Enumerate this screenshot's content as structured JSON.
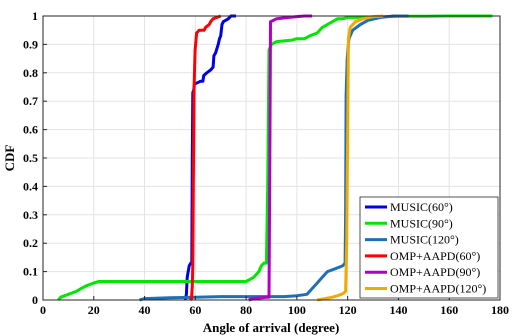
{
  "chart_data": {
    "type": "line",
    "xlabel": "Angle of arrival (degree)",
    "ylabel": "CDF",
    "xlim": [
      0,
      180
    ],
    "ylim": [
      0,
      1
    ],
    "x_ticks": [
      0,
      20,
      40,
      60,
      80,
      100,
      120,
      140,
      160,
      180
    ],
    "x_tick_labels": [
      "0",
      "20",
      "40",
      "60",
      "80",
      "100",
      "120",
      "140",
      "160",
      "180"
    ],
    "y_ticks": [
      0,
      0.1,
      0.2,
      0.3,
      0.4,
      0.5,
      0.6,
      0.7,
      0.8,
      0.9,
      1
    ],
    "y_tick_labels": [
      "0",
      "0.1",
      "0.2",
      "0.3",
      "0.4",
      "0.5",
      "0.6",
      "0.7",
      "0.8",
      "0.9",
      "1"
    ],
    "grid": true,
    "legend_position": "bottom-right",
    "series": [
      {
        "name": "MUSIC(60°)",
        "color": "#0000e6",
        "points": [
          [
            56,
            0
          ],
          [
            56.5,
            0.02
          ],
          [
            56.8,
            0.08
          ],
          [
            57.2,
            0.1
          ],
          [
            57.6,
            0.12
          ],
          [
            58.2,
            0.13
          ],
          [
            58.6,
            0.13
          ],
          [
            58.8,
            0.5
          ],
          [
            59,
            0.73
          ],
          [
            59.4,
            0.74
          ],
          [
            59.6,
            0.76
          ],
          [
            62,
            0.77
          ],
          [
            63,
            0.77
          ],
          [
            63.3,
            0.79
          ],
          [
            64.5,
            0.8
          ],
          [
            66,
            0.81
          ],
          [
            67,
            0.82
          ],
          [
            67.3,
            0.86
          ],
          [
            68,
            0.87
          ],
          [
            69,
            0.9
          ],
          [
            69.5,
            0.92
          ],
          [
            70,
            0.93
          ],
          [
            70.5,
            0.97
          ],
          [
            71,
            0.98
          ],
          [
            73,
            0.99
          ],
          [
            74,
            1.0
          ],
          [
            76,
            1.0
          ]
        ]
      },
      {
        "name": "MUSIC(90°)",
        "color": "#00e600",
        "points": [
          [
            6,
            0
          ],
          [
            7,
            0.01
          ],
          [
            10,
            0.02
          ],
          [
            13,
            0.03
          ],
          [
            15,
            0.04
          ],
          [
            17,
            0.05
          ],
          [
            20,
            0.06
          ],
          [
            22,
            0.065
          ],
          [
            40,
            0.065
          ],
          [
            60,
            0.065
          ],
          [
            80,
            0.065
          ],
          [
            83,
            0.08
          ],
          [
            85,
            0.1
          ],
          [
            86,
            0.12
          ],
          [
            87,
            0.13
          ],
          [
            88,
            0.13
          ],
          [
            88.5,
            0.4
          ],
          [
            89,
            0.88
          ],
          [
            90,
            0.9
          ],
          [
            92,
            0.91
          ],
          [
            98,
            0.915
          ],
          [
            100,
            0.92
          ],
          [
            103,
            0.92
          ],
          [
            105,
            0.93
          ],
          [
            108,
            0.94
          ],
          [
            110,
            0.96
          ],
          [
            112,
            0.97
          ],
          [
            114,
            0.98
          ],
          [
            116,
            0.99
          ],
          [
            118,
            0.99
          ],
          [
            120,
            0.995
          ],
          [
            130,
            0.995
          ],
          [
            135,
            0.998
          ],
          [
            140,
            0.999
          ],
          [
            150,
            0.999
          ],
          [
            160,
            1.0
          ],
          [
            170,
            1.0
          ],
          [
            177,
            1.0
          ]
        ]
      },
      {
        "name": "MUSIC(120°)",
        "color": "#1f6fb8",
        "points": [
          [
            38,
            0
          ],
          [
            40,
            0.005
          ],
          [
            50,
            0.008
          ],
          [
            60,
            0.01
          ],
          [
            70,
            0.012
          ],
          [
            80,
            0.012
          ],
          [
            95,
            0.012
          ],
          [
            100,
            0.015
          ],
          [
            104,
            0.02
          ],
          [
            106,
            0.04
          ],
          [
            108,
            0.06
          ],
          [
            110,
            0.08
          ],
          [
            112,
            0.1
          ],
          [
            115,
            0.11
          ],
          [
            118,
            0.12
          ],
          [
            119,
            0.13
          ],
          [
            119.2,
            0.3
          ],
          [
            119.4,
            0.72
          ],
          [
            119.8,
            0.85
          ],
          [
            120.5,
            0.92
          ],
          [
            122,
            0.95
          ],
          [
            125,
            0.97
          ],
          [
            128,
            0.985
          ],
          [
            133,
            0.995
          ],
          [
            138,
            1.0
          ],
          [
            144,
            1.0
          ]
        ]
      },
      {
        "name": "OMP+AAPD(60°)",
        "color": "#ff0000",
        "points": [
          [
            58,
            0
          ],
          [
            58.5,
            0.005
          ],
          [
            58.8,
            0.05
          ],
          [
            59,
            0.12
          ],
          [
            59.2,
            0.4
          ],
          [
            59.5,
            0.75
          ],
          [
            59.9,
            0.88
          ],
          [
            60.5,
            0.94
          ],
          [
            61.5,
            0.95
          ],
          [
            63.5,
            0.95
          ],
          [
            64,
            0.96
          ],
          [
            65.5,
            0.97
          ],
          [
            66,
            0.98
          ],
          [
            67,
            0.99
          ],
          [
            68.5,
            0.995
          ],
          [
            70,
            1.0
          ]
        ]
      },
      {
        "name": "OMP+AAPD(90°)",
        "color": "#b000c8",
        "points": [
          [
            81,
            0
          ],
          [
            83,
            0.005
          ],
          [
            86,
            0.008
          ],
          [
            88,
            0.01
          ],
          [
            89,
            0.01
          ],
          [
            89.3,
            0.4
          ],
          [
            89.6,
            0.98
          ],
          [
            92,
            0.99
          ],
          [
            97,
            0.995
          ],
          [
            100,
            0.998
          ],
          [
            103,
            1.0
          ],
          [
            106,
            1.0
          ]
        ]
      },
      {
        "name": "OMP+AAPD(120°)",
        "color": "#f2a900",
        "points": [
          [
            108,
            0
          ],
          [
            111,
            0.005
          ],
          [
            114,
            0.01
          ],
          [
            116,
            0.015
          ],
          [
            117.5,
            0.02
          ],
          [
            118.5,
            0.025
          ],
          [
            119.2,
            0.03
          ],
          [
            119.6,
            0.2
          ],
          [
            120,
            0.6
          ],
          [
            120.3,
            0.92
          ],
          [
            121,
            0.96
          ],
          [
            123,
            0.98
          ],
          [
            126,
            0.99
          ],
          [
            130,
            0.998
          ],
          [
            134,
            1.0
          ]
        ]
      }
    ]
  }
}
